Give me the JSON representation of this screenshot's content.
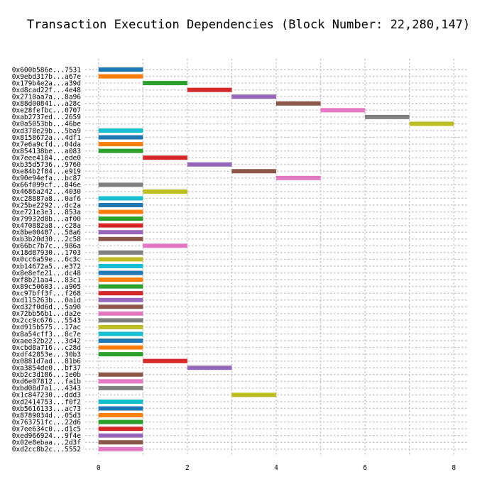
{
  "chart_data": {
    "type": "gantt",
    "title": "Transaction Execution Dependencies (Block Number: 22,280,147)",
    "xlabel": "",
    "ylabel": "",
    "xlim": [
      -0.3,
      8.3
    ],
    "xticks": [
      0,
      2,
      4,
      6,
      8
    ],
    "grid": true,
    "colors": [
      "#1f77b4",
      "#ff7f0e",
      "#2ca02c",
      "#d62728",
      "#9467bd",
      "#8c564b",
      "#e377c2",
      "#7f7f7f",
      "#bcbd22",
      "#17becf"
    ],
    "tasks": [
      {
        "label": "0x600b586e...7531",
        "start": 0,
        "end": 1,
        "color": "#1f77b4"
      },
      {
        "label": "0x9ebd317b...a67e",
        "start": 0,
        "end": 1,
        "color": "#ff7f0e"
      },
      {
        "label": "0x179b4e2a...a39d",
        "start": 1,
        "end": 2,
        "color": "#2ca02c"
      },
      {
        "label": "0xd8cad22f...4e48",
        "start": 2,
        "end": 3,
        "color": "#d62728"
      },
      {
        "label": "0x2710aa7a...8a96",
        "start": 3,
        "end": 4,
        "color": "#9467bd"
      },
      {
        "label": "0x88d00841...a28c",
        "start": 4,
        "end": 5,
        "color": "#8c564b"
      },
      {
        "label": "0xe28fefbc...0707",
        "start": 5,
        "end": 6,
        "color": "#e377c2"
      },
      {
        "label": "0xab2737ed...2659",
        "start": 6,
        "end": 7,
        "color": "#7f7f7f"
      },
      {
        "label": "0x0a5053bb...46be",
        "start": 7,
        "end": 8,
        "color": "#bcbd22"
      },
      {
        "label": "0xd378e29b...5ba9",
        "start": 0,
        "end": 1,
        "color": "#17becf"
      },
      {
        "label": "0x8158672a...4df1",
        "start": 0,
        "end": 1,
        "color": "#1f77b4"
      },
      {
        "label": "0x7e6a9cfd...04da",
        "start": 0,
        "end": 1,
        "color": "#ff7f0e"
      },
      {
        "label": "0x854138be...a083",
        "start": 0,
        "end": 1,
        "color": "#2ca02c"
      },
      {
        "label": "0x7eee4184...ede0",
        "start": 1,
        "end": 2,
        "color": "#d62728"
      },
      {
        "label": "0xb35d5736...9760",
        "start": 2,
        "end": 3,
        "color": "#9467bd"
      },
      {
        "label": "0xe84b2f84...e919",
        "start": 3,
        "end": 4,
        "color": "#8c564b"
      },
      {
        "label": "0x90e94efa...bc87",
        "start": 4,
        "end": 5,
        "color": "#e377c2"
      },
      {
        "label": "0x66f099cf...846e",
        "start": 0,
        "end": 1,
        "color": "#7f7f7f"
      },
      {
        "label": "0x4686a242...4030",
        "start": 1,
        "end": 2,
        "color": "#bcbd22"
      },
      {
        "label": "0xc28887a8...0af6",
        "start": 0,
        "end": 1,
        "color": "#17becf"
      },
      {
        "label": "0x25be2292...dc2a",
        "start": 0,
        "end": 1,
        "color": "#1f77b4"
      },
      {
        "label": "0xe721e3e3...853a",
        "start": 0,
        "end": 1,
        "color": "#ff7f0e"
      },
      {
        "label": "0x79932d8b...af00",
        "start": 0,
        "end": 1,
        "color": "#2ca02c"
      },
      {
        "label": "0x470882a8...c28a",
        "start": 0,
        "end": 1,
        "color": "#d62728"
      },
      {
        "label": "0x8be00487...58a6",
        "start": 0,
        "end": 1,
        "color": "#9467bd"
      },
      {
        "label": "0xb3b20d30...2c58",
        "start": 0,
        "end": 1,
        "color": "#8c564b"
      },
      {
        "label": "0x66bc7b7c...986a",
        "start": 1,
        "end": 2,
        "color": "#e377c2"
      },
      {
        "label": "0x18d87930...1703",
        "start": 0,
        "end": 1,
        "color": "#7f7f7f"
      },
      {
        "label": "0x0cc6a59e...6c3c",
        "start": 0,
        "end": 1,
        "color": "#bcbd22"
      },
      {
        "label": "0xb14672a5...e372",
        "start": 0,
        "end": 1,
        "color": "#17becf"
      },
      {
        "label": "0x8e8efe21...dc48",
        "start": 0,
        "end": 1,
        "color": "#1f77b4"
      },
      {
        "label": "0xf8b21aa4...83c1",
        "start": 0,
        "end": 1,
        "color": "#ff7f0e"
      },
      {
        "label": "0x89c50603...a905",
        "start": 0,
        "end": 1,
        "color": "#2ca02c"
      },
      {
        "label": "0xc97bff3f...f268",
        "start": 0,
        "end": 1,
        "color": "#d62728"
      },
      {
        "label": "0xd115263b...0a1d",
        "start": 0,
        "end": 1,
        "color": "#9467bd"
      },
      {
        "label": "0xd32f0d6d...5a90",
        "start": 0,
        "end": 1,
        "color": "#8c564b"
      },
      {
        "label": "0x72bb56b1...da2e",
        "start": 0,
        "end": 1,
        "color": "#e377c2"
      },
      {
        "label": "0x2cc9c676...5543",
        "start": 0,
        "end": 1,
        "color": "#7f7f7f"
      },
      {
        "label": "0xd915b575...17ac",
        "start": 0,
        "end": 1,
        "color": "#bcbd22"
      },
      {
        "label": "0x8a54cff3...8c7e",
        "start": 0,
        "end": 1,
        "color": "#17becf"
      },
      {
        "label": "0xaee32b22...3d42",
        "start": 0,
        "end": 1,
        "color": "#1f77b4"
      },
      {
        "label": "0xcbd8a716...c28d",
        "start": 0,
        "end": 1,
        "color": "#ff7f0e"
      },
      {
        "label": "0xdf42853e...30b3",
        "start": 0,
        "end": 1,
        "color": "#2ca02c"
      },
      {
        "label": "0x0881d7ad...81b6",
        "start": 1,
        "end": 2,
        "color": "#d62728"
      },
      {
        "label": "0xa3854de0...bf37",
        "start": 2,
        "end": 3,
        "color": "#9467bd"
      },
      {
        "label": "0xb2c3d186...1e0b",
        "start": 0,
        "end": 1,
        "color": "#8c564b"
      },
      {
        "label": "0xd6e07812...fa1b",
        "start": 0,
        "end": 1,
        "color": "#e377c2"
      },
      {
        "label": "0xbd08d7a1...4343",
        "start": 0,
        "end": 1,
        "color": "#7f7f7f"
      },
      {
        "label": "0x1c847230...ddd3",
        "start": 3,
        "end": 4,
        "color": "#bcbd22"
      },
      {
        "label": "0xd2414753...f0f2",
        "start": 0,
        "end": 1,
        "color": "#17becf"
      },
      {
        "label": "0xb5616133...ac73",
        "start": 0,
        "end": 1,
        "color": "#1f77b4"
      },
      {
        "label": "0x8789034d...05d3",
        "start": 0,
        "end": 1,
        "color": "#ff7f0e"
      },
      {
        "label": "0x763751fc...22d6",
        "start": 0,
        "end": 1,
        "color": "#2ca02c"
      },
      {
        "label": "0x7ee634c0...d1c5",
        "start": 0,
        "end": 1,
        "color": "#d62728"
      },
      {
        "label": "0xed966924...9f4e",
        "start": 0,
        "end": 1,
        "color": "#9467bd"
      },
      {
        "label": "0x02e8ebaa...2d3f",
        "start": 0,
        "end": 1,
        "color": "#8c564b"
      },
      {
        "label": "0xd2cc8b2c...5552",
        "start": 0,
        "end": 1,
        "color": "#e377c2"
      }
    ]
  }
}
